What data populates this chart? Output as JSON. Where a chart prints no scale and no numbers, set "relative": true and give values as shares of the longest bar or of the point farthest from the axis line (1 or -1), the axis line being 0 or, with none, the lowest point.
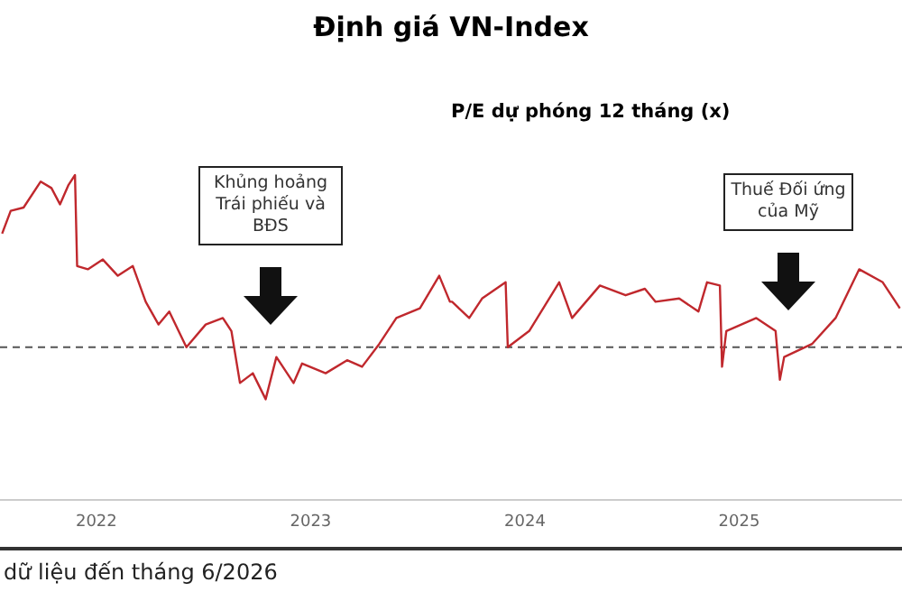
{
  "chart_data": {
    "type": "line",
    "title": "Định giá VN-Index",
    "ylabel": "P/E dự phóng 12 tháng (x)",
    "relative": true,
    "marker": "none",
    "line_style": "solid",
    "xlim": [
      2021.55,
      2025.76
    ],
    "xticks": [
      2022,
      2023,
      2024,
      2025
    ],
    "series": [
      {
        "color": "#c0282d",
        "x": [
          2021.56,
          2021.6,
          2021.66,
          2021.74,
          2021.79,
          2021.83,
          2021.87,
          2021.9,
          2021.91,
          2021.96,
          2022.03,
          2022.1,
          2022.17,
          2022.23,
          2022.29,
          2022.34,
          2022.42,
          2022.51,
          2022.59,
          2022.63,
          2022.67,
          2022.73,
          2022.79,
          2022.84,
          2022.92,
          2022.96,
          2023.07,
          2023.17,
          2023.24,
          2023.32,
          2023.4,
          2023.51,
          2023.6,
          2023.65,
          2023.66,
          2023.74,
          2023.8,
          2023.91,
          2023.92,
          2024.02,
          2024.16,
          2024.22,
          2024.35,
          2024.47,
          2024.56,
          2024.61,
          2024.72,
          2024.81,
          2024.85,
          2024.91,
          2024.92,
          2024.94,
          2025.08,
          2025.17,
          2025.19,
          2025.21,
          2025.34,
          2025.45,
          2025.56,
          2025.67,
          2025.75
        ],
        "values": [
          0.82,
          0.89,
          0.9,
          0.98,
          0.96,
          0.91,
          0.97,
          1.0,
          0.72,
          0.71,
          0.74,
          0.69,
          0.72,
          0.61,
          0.54,
          0.58,
          0.47,
          0.54,
          0.56,
          0.52,
          0.36,
          0.39,
          0.31,
          0.44,
          0.36,
          0.42,
          0.39,
          0.43,
          0.41,
          0.48,
          0.56,
          0.59,
          0.69,
          0.61,
          0.61,
          0.56,
          0.62,
          0.67,
          0.47,
          0.52,
          0.67,
          0.56,
          0.66,
          0.63,
          0.65,
          0.61,
          0.62,
          0.58,
          0.67,
          0.66,
          0.41,
          0.52,
          0.56,
          0.52,
          0.37,
          0.44,
          0.48,
          0.56,
          0.71,
          0.67,
          0.59
        ]
      }
    ],
    "ref_lines": [
      {
        "axis": "y",
        "value": 0.47,
        "color": "#555555",
        "line_style": "dashed"
      }
    ],
    "annotations": [
      "Khủng hoảng Trái phiếu và BĐS",
      "Thuế Đối ứng của Mỹ",
      "dữ liệu đến tháng 6/2026"
    ]
  }
}
